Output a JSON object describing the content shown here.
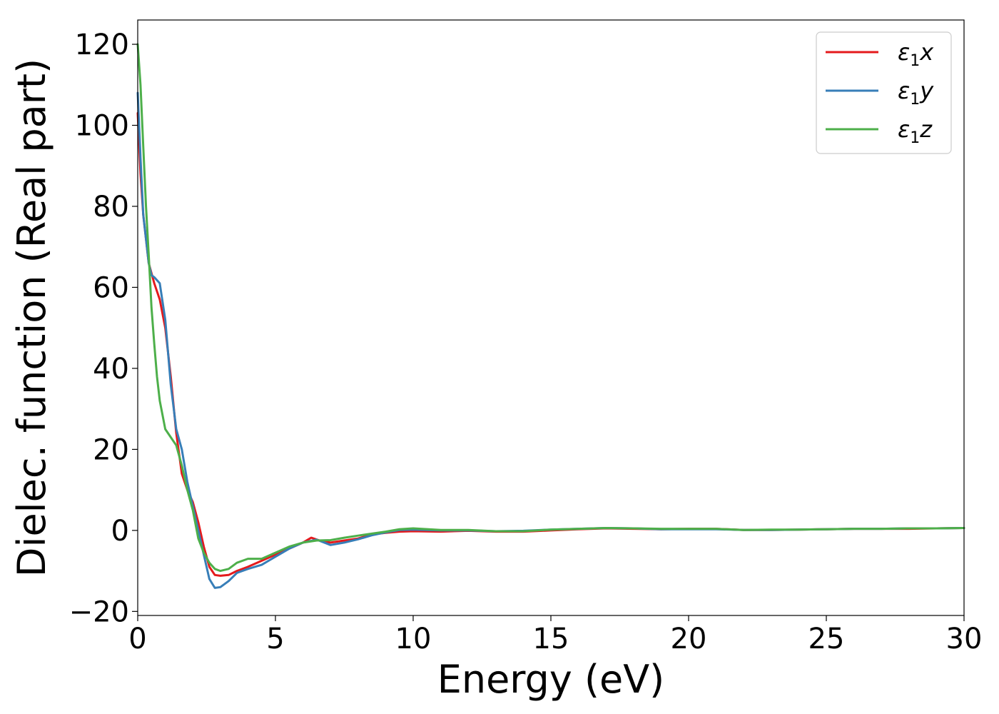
{
  "chart_data": {
    "type": "line",
    "xlabel": "Energy (eV)",
    "ylabel": "Dielec. function (Real part)",
    "xlim": [
      0,
      30
    ],
    "ylim": [
      -21,
      126
    ],
    "x_ticks": [
      "0",
      "5",
      "10",
      "15",
      "20",
      "25",
      "30"
    ],
    "x_tick_values": [
      0,
      5,
      10,
      15,
      20,
      25,
      30
    ],
    "y_ticks": [
      "−20",
      "0",
      "20",
      "40",
      "60",
      "80",
      "100",
      "120"
    ],
    "y_tick_values": [
      -20,
      0,
      20,
      40,
      60,
      80,
      100,
      120
    ],
    "grid": false,
    "legend_position": "top-right",
    "series": [
      {
        "name": "ε1x",
        "legend": {
          "base": "ε",
          "sub": "1",
          "var": "x"
        },
        "color": "#e41a1c",
        "points": [
          [
            0,
            103
          ],
          [
            0.1,
            88
          ],
          [
            0.2,
            78
          ],
          [
            0.4,
            66
          ],
          [
            0.6,
            61
          ],
          [
            0.8,
            57
          ],
          [
            1.0,
            50
          ],
          [
            1.2,
            38
          ],
          [
            1.4,
            24
          ],
          [
            1.6,
            14
          ],
          [
            1.8,
            10
          ],
          [
            2.0,
            7
          ],
          [
            2.2,
            2
          ],
          [
            2.4,
            -4
          ],
          [
            2.6,
            -9
          ],
          [
            2.8,
            -11
          ],
          [
            3.0,
            -11.2
          ],
          [
            3.3,
            -11
          ],
          [
            3.6,
            -10
          ],
          [
            4.0,
            -9
          ],
          [
            4.5,
            -7.5
          ],
          [
            5.0,
            -6
          ],
          [
            5.5,
            -4.5
          ],
          [
            6.0,
            -3
          ],
          [
            6.3,
            -1.8
          ],
          [
            6.6,
            -2.5
          ],
          [
            7.0,
            -3
          ],
          [
            7.5,
            -2.5
          ],
          [
            8.0,
            -2
          ],
          [
            8.5,
            -1
          ],
          [
            9.0,
            -0.6
          ],
          [
            9.5,
            -0.3
          ],
          [
            10,
            -0.2
          ],
          [
            11,
            -0.3
          ],
          [
            12,
            -0.1
          ],
          [
            13,
            -0.3
          ],
          [
            14,
            -0.3
          ],
          [
            15,
            0
          ],
          [
            16,
            0.3
          ],
          [
            17,
            0.5
          ],
          [
            18,
            0.4
          ],
          [
            19,
            0.3
          ],
          [
            20,
            0.4
          ],
          [
            21,
            0.4
          ],
          [
            22,
            0.1
          ],
          [
            23,
            0.1
          ],
          [
            24,
            0.2
          ],
          [
            25,
            0.3
          ],
          [
            26,
            0.4
          ],
          [
            27,
            0.4
          ],
          [
            28,
            0.4
          ],
          [
            29,
            0.5
          ],
          [
            30,
            0.6
          ]
        ]
      },
      {
        "name": "ε1y",
        "legend": {
          "base": "ε",
          "sub": "1",
          "var": "y"
        },
        "color": "#377eb8",
        "points": [
          [
            0,
            108
          ],
          [
            0.1,
            92
          ],
          [
            0.2,
            78
          ],
          [
            0.4,
            66
          ],
          [
            0.5,
            63
          ],
          [
            0.6,
            62.5
          ],
          [
            0.8,
            61
          ],
          [
            1.0,
            52
          ],
          [
            1.2,
            36
          ],
          [
            1.4,
            25
          ],
          [
            1.6,
            20
          ],
          [
            1.8,
            12
          ],
          [
            2.0,
            6
          ],
          [
            2.2,
            0
          ],
          [
            2.4,
            -6
          ],
          [
            2.6,
            -12
          ],
          [
            2.8,
            -14.2
          ],
          [
            3.0,
            -14
          ],
          [
            3.3,
            -12.5
          ],
          [
            3.6,
            -10.5
          ],
          [
            4.0,
            -9.5
          ],
          [
            4.5,
            -8.5
          ],
          [
            5.0,
            -6.5
          ],
          [
            5.5,
            -4.5
          ],
          [
            6.0,
            -3
          ],
          [
            6.5,
            -2.3
          ],
          [
            7.0,
            -3.6
          ],
          [
            7.5,
            -3
          ],
          [
            8.0,
            -2.2
          ],
          [
            8.5,
            -1.2
          ],
          [
            9.0,
            -0.5
          ],
          [
            9.5,
            0.1
          ],
          [
            10,
            0.2
          ],
          [
            11,
            0
          ],
          [
            12,
            0
          ],
          [
            13,
            -0.2
          ],
          [
            14,
            -0.1
          ],
          [
            15,
            0.2
          ],
          [
            16,
            0.4
          ],
          [
            17,
            0.6
          ],
          [
            18,
            0.5
          ],
          [
            19,
            0.3
          ],
          [
            20,
            0.3
          ],
          [
            21,
            0.3
          ],
          [
            22,
            0.1
          ],
          [
            23,
            0.1
          ],
          [
            24,
            0.2
          ],
          [
            25,
            0.3
          ],
          [
            26,
            0.4
          ],
          [
            27,
            0.4
          ],
          [
            28,
            0.5
          ],
          [
            29,
            0.5
          ],
          [
            30,
            0.6
          ]
        ]
      },
      {
        "name": "ε1z",
        "legend": {
          "base": "ε",
          "sub": "1",
          "var": "z"
        },
        "color": "#4daf4a",
        "points": [
          [
            0,
            120
          ],
          [
            0.1,
            110
          ],
          [
            0.2,
            95
          ],
          [
            0.3,
            80
          ],
          [
            0.4,
            68
          ],
          [
            0.5,
            55
          ],
          [
            0.6,
            46
          ],
          [
            0.7,
            38
          ],
          [
            0.8,
            32
          ],
          [
            1.0,
            25
          ],
          [
            1.2,
            23
          ],
          [
            1.4,
            21
          ],
          [
            1.6,
            16
          ],
          [
            1.8,
            10
          ],
          [
            2.0,
            5
          ],
          [
            2.2,
            -2
          ],
          [
            2.4,
            -5.5
          ],
          [
            2.6,
            -8
          ],
          [
            2.8,
            -9.5
          ],
          [
            3.0,
            -10
          ],
          [
            3.3,
            -9.5
          ],
          [
            3.6,
            -8
          ],
          [
            4.0,
            -7
          ],
          [
            4.5,
            -7
          ],
          [
            5.0,
            -5.5
          ],
          [
            5.5,
            -4
          ],
          [
            6.0,
            -3
          ],
          [
            6.5,
            -2.5
          ],
          [
            7.0,
            -2.4
          ],
          [
            7.5,
            -1.8
          ],
          [
            8.0,
            -1.3
          ],
          [
            8.5,
            -0.8
          ],
          [
            9.0,
            -0.3
          ],
          [
            9.5,
            0.3
          ],
          [
            10,
            0.5
          ],
          [
            11,
            0.1
          ],
          [
            12,
            0.1
          ],
          [
            13,
            -0.2
          ],
          [
            14,
            -0.2
          ],
          [
            15,
            0.2
          ],
          [
            16,
            0.4
          ],
          [
            17,
            0.6
          ],
          [
            18,
            0.5
          ],
          [
            19,
            0.4
          ],
          [
            20,
            0.4
          ],
          [
            21,
            0.4
          ],
          [
            22,
            0.1
          ],
          [
            23,
            0.2
          ],
          [
            24,
            0.2
          ],
          [
            25,
            0.3
          ],
          [
            26,
            0.4
          ],
          [
            27,
            0.4
          ],
          [
            28,
            0.5
          ],
          [
            29,
            0.5
          ],
          [
            30,
            0.6
          ]
        ]
      }
    ]
  }
}
